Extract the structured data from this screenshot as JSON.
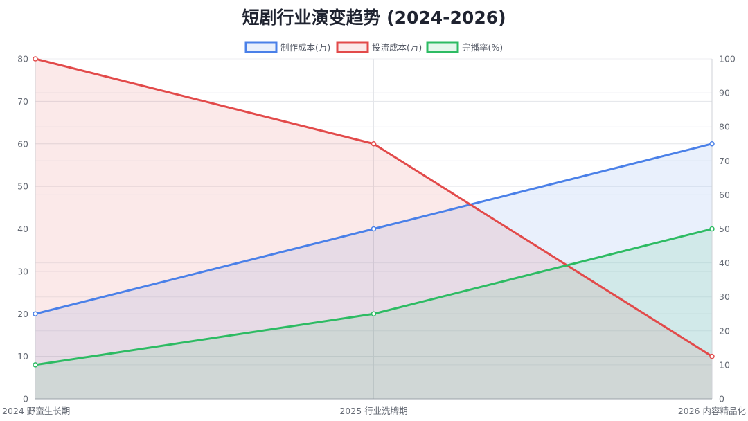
{
  "chart_data": {
    "type": "line",
    "title": "短剧行业演变趋势 (2024-2026)",
    "categories": [
      "2024 野蛮生长期",
      "2025 行业洗牌期",
      "2026 内容精品化"
    ],
    "series": [
      {
        "name": "制作成本(万)",
        "axis": "left",
        "color": "#4a80e8",
        "fill": "rgba(74,128,232,0.12)",
        "values": [
          20,
          40,
          60
        ]
      },
      {
        "name": "投流成本(万)",
        "axis": "left",
        "color": "#e24a4a",
        "fill": "rgba(226,74,74,0.12)",
        "values": [
          80,
          60,
          10
        ]
      },
      {
        "name": "完播率(%)",
        "axis": "right",
        "color": "#2dbb63",
        "fill": "rgba(45,187,99,0.12)",
        "values": [
          10,
          25,
          50
        ]
      }
    ],
    "y_left": {
      "min": 0,
      "max": 80,
      "step": 10,
      "ticks": [
        "0",
        "10",
        "20",
        "30",
        "40",
        "50",
        "60",
        "70",
        "80"
      ]
    },
    "y_right": {
      "min": 0,
      "max": 100,
      "step": 10,
      "ticks": [
        "0",
        "10",
        "20",
        "30",
        "40",
        "50",
        "60",
        "70",
        "80",
        "90",
        "100"
      ]
    },
    "legend_position": "top-center",
    "grid": true
  }
}
